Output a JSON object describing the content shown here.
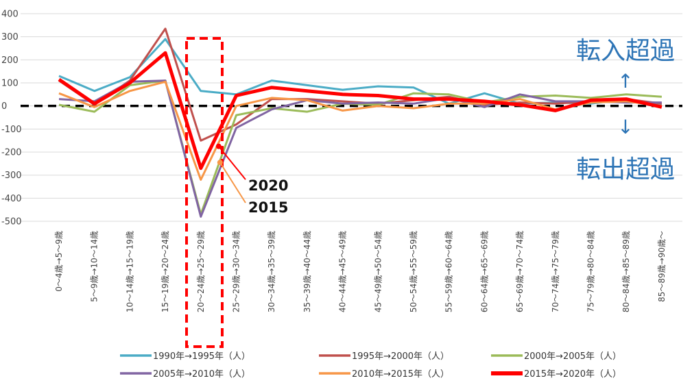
{
  "chart_data": {
    "type": "line",
    "title": "",
    "xlabel": "",
    "ylabel": "",
    "ylim": [
      -500,
      400
    ],
    "yticks": [
      400,
      300,
      200,
      100,
      0,
      -100,
      -200,
      -300,
      -400,
      -500
    ],
    "grid": true,
    "legend_position": "bottom",
    "categories": [
      "0～4歳→5～9歳",
      "5～9歳→10～14歳",
      "10～14歳→15～19歳",
      "15～19歳→20～24歳",
      "20～24歳→25～29歳",
      "25～29歳→30～34歳",
      "30～34歳→35～39歳",
      "35～39歳→40～44歳",
      "40～44歳→45～49歳",
      "45～49歳→50～54歳",
      "50～54歳→55～59歳",
      "55～59歳→60～64歳",
      "60～64歳→65～69歳",
      "65～69歳→70～74歳",
      "70～74歳→75～79歳",
      "75～79歳→80～84歳",
      "80～84歳→85～89歳",
      "85～89歳→90歳～"
    ],
    "series": [
      {
        "name": "1990年→1995年（人）",
        "color": "#4bacc6",
        "values": [
          130,
          65,
          125,
          290,
          65,
          50,
          110,
          90,
          70,
          85,
          80,
          10,
          55,
          10,
          15,
          10,
          30,
          5
        ]
      },
      {
        "name": "1995年→2000年（人）",
        "color": "#c0504d",
        "values": [
          110,
          5,
          110,
          335,
          -150,
          -80,
          30,
          30,
          20,
          10,
          25,
          40,
          5,
          15,
          10,
          20,
          30,
          10
        ]
      },
      {
        "name": "2000年→2005年（人）",
        "color": "#9bbb59",
        "values": [
          5,
          -25,
          90,
          110,
          -470,
          -40,
          -10,
          -25,
          10,
          5,
          55,
          50,
          15,
          40,
          45,
          35,
          50,
          40
        ]
      },
      {
        "name": "2005年→2010年（人）",
        "color": "#8064a2",
        "values": [
          30,
          20,
          105,
          110,
          -480,
          -95,
          -15,
          25,
          10,
          15,
          10,
          35,
          -5,
          50,
          20,
          20,
          15,
          15
        ]
      },
      {
        "name": "2010年→2015年（人）",
        "color": "#f79646",
        "values": [
          55,
          -5,
          65,
          105,
          -320,
          0,
          35,
          25,
          -20,
          0,
          -10,
          10,
          10,
          30,
          -15,
          15,
          20,
          0
        ]
      },
      {
        "name": "2015年→2020年（人）",
        "color": "#ff0000",
        "values": [
          115,
          10,
          100,
          230,
          -270,
          45,
          80,
          65,
          50,
          45,
          30,
          30,
          20,
          5,
          -20,
          25,
          30,
          -5
        ]
      }
    ],
    "annotations": {
      "label_2020": "2020",
      "label_2015": "2015",
      "top_text": "転入超過",
      "bottom_text": "転出超過",
      "arrow_up": "↑",
      "arrow_down": "↓"
    }
  }
}
